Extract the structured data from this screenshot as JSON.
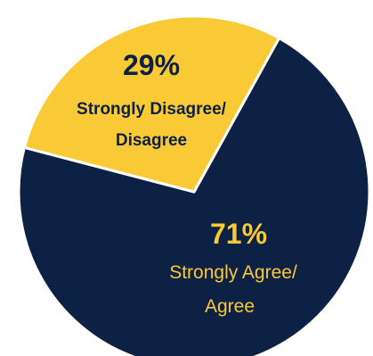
{
  "chart_data": {
    "type": "pie",
    "slices": [
      {
        "value": 71,
        "value_label": "71%",
        "label_lines": [
          "Strongly Agree/",
          "Agree"
        ],
        "color": "#0D2145",
        "text_color": "#F9C936"
      },
      {
        "value": 29,
        "value_label": "29%",
        "label_lines": [
          "Strongly Disagree/",
          "Disagree"
        ],
        "color": "#F9C936",
        "text_color": "#0D2145"
      }
    ]
  }
}
